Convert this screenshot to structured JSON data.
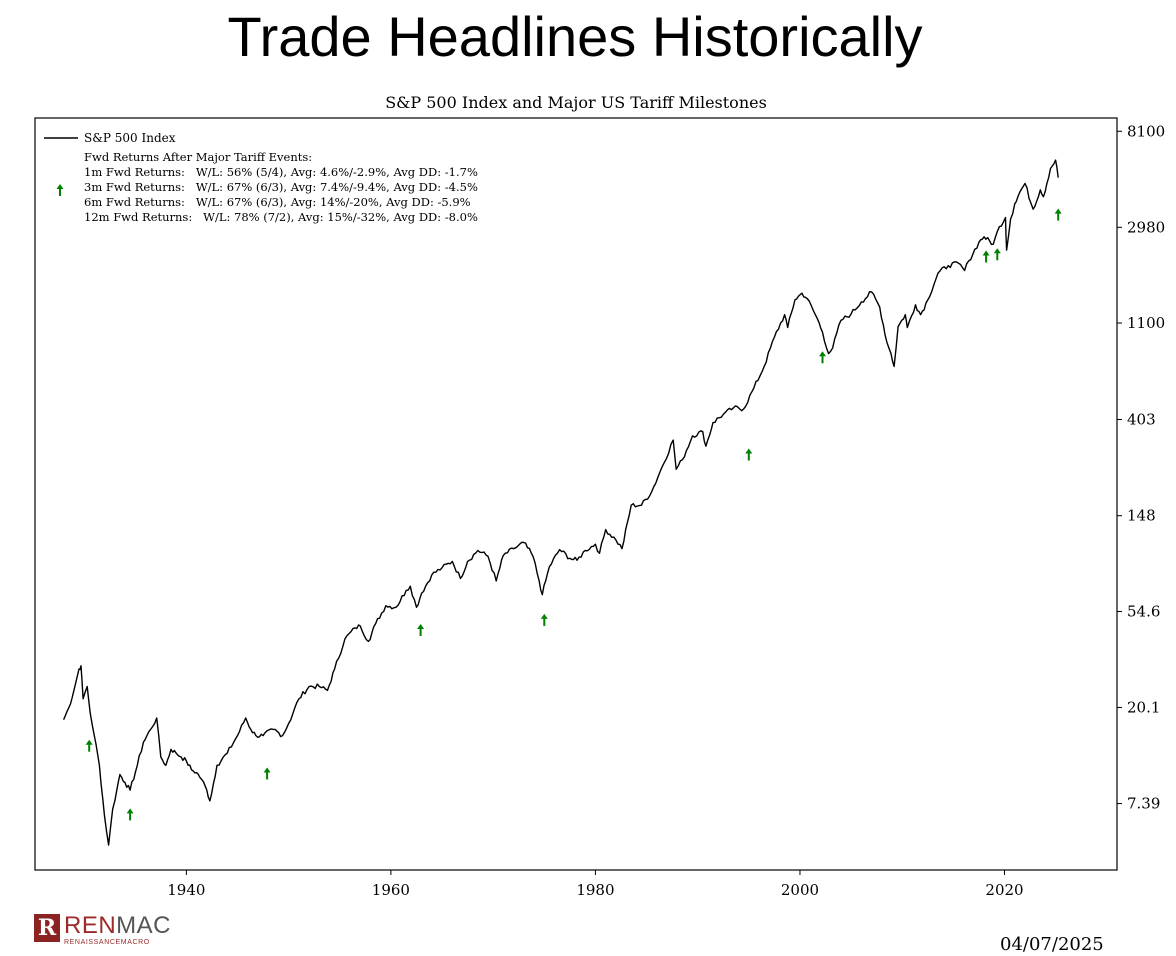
{
  "slide_title": "Trade Headlines Historically",
  "logo": {
    "name_part1": "REN",
    "name_part2": "MAC",
    "subtitle": "RENAISSANCEMACRO"
  },
  "date": "04/07/2025",
  "colors": {
    "line": "#000000",
    "arrow": "#008000",
    "logo": "#9c2a2a"
  },
  "chart_data": {
    "type": "line",
    "title": "S&P 500 Index and Major US Tariff Milestones",
    "y_scale": "log",
    "y_axis_side": "right",
    "xlim": [
      1925.2,
      2031.0
    ],
    "ylim": [
      3.7,
      9300
    ],
    "x_ticks": [
      1940,
      1960,
      1980,
      2000,
      2020
    ],
    "y_ticks": [
      {
        "value": 8100,
        "label": "8100"
      },
      {
        "value": 2980,
        "label": "2980"
      },
      {
        "value": 1100,
        "label": "1100"
      },
      {
        "value": 403,
        "label": "403"
      },
      {
        "value": 148,
        "label": "148"
      },
      {
        "value": 54.6,
        "label": "54.6"
      },
      {
        "value": 20.1,
        "label": "20.1"
      },
      {
        "value": 7.39,
        "label": "7.39"
      }
    ],
    "legend": {
      "placement": "top-left",
      "series_label": "S&P 500 Index",
      "stats_header": "Fwd Returns After Major Tariff Events:",
      "stats": [
        "1m Fwd Returns:   W/L: 56% (5/4), Avg: 4.6%/-2.9%, Avg DD: -1.7%",
        "3m Fwd Returns:   W/L: 67% (6/3), Avg: 7.4%/-9.4%, Avg DD: -4.5%",
        "6m Fwd Returns:   W/L: 67% (6/3), Avg: 14%/-20%, Avg DD: -5.9%",
        "12m Fwd Returns:   W/L: 78% (7/2), Avg: 15%/-32%, Avg DD: -8.0%"
      ]
    },
    "series": [
      {
        "name": "S&P 500 Index",
        "x": [
          1928.0,
          1928.5,
          1929.0,
          1929.5,
          1929.7,
          1929.9,
          1930.3,
          1930.6,
          1931.0,
          1931.5,
          1932.0,
          1932.4,
          1932.8,
          1933.2,
          1933.5,
          1934.0,
          1934.5,
          1935.2,
          1935.8,
          1936.5,
          1937.1,
          1937.5,
          1938.0,
          1938.5,
          1939.0,
          1939.5,
          1940.0,
          1940.5,
          1941.0,
          1941.5,
          1942.0,
          1942.3,
          1943.0,
          1944.0,
          1945.0,
          1945.8,
          1946.3,
          1946.8,
          1947.5,
          1948.5,
          1949.4,
          1950.0,
          1951.0,
          1952.0,
          1953.0,
          1953.8,
          1954.5,
          1955.5,
          1956.5,
          1957.0,
          1957.8,
          1958.5,
          1959.5,
          1960.5,
          1961.5,
          1961.9,
          1962.5,
          1963.0,
          1964.0,
          1965.0,
          1966.0,
          1966.8,
          1967.5,
          1968.5,
          1969.5,
          1970.3,
          1971.0,
          1972.0,
          1973.0,
          1973.9,
          1974.5,
          1974.8,
          1975.5,
          1976.5,
          1977.5,
          1978.2,
          1979.0,
          1980.0,
          1980.4,
          1981.0,
          1982.0,
          1982.6,
          1983.5,
          1984.5,
          1985.5,
          1986.5,
          1987.6,
          1987.9,
          1988.5,
          1989.5,
          1990.5,
          1990.8,
          1991.5,
          1992.5,
          1993.5,
          1994.5,
          1995.5,
          1996.5,
          1997.5,
          1998.5,
          1998.8,
          1999.5,
          2000.2,
          2000.7,
          2001.7,
          2002.2,
          2002.8,
          2003.2,
          2004.0,
          2005.0,
          2006.0,
          2007.0,
          2007.8,
          2008.5,
          2008.9,
          2009.2,
          2009.6,
          2010.3,
          2010.5,
          2011.3,
          2011.8,
          2012.5,
          2013.5,
          2014.5,
          2015.5,
          2016.1,
          2016.5,
          2017.5,
          2018.0,
          2018.9,
          2019.5,
          2020.1,
          2020.2,
          2020.6,
          2021.0,
          2021.5,
          2022.0,
          2022.8,
          2023.5,
          2023.8,
          2024.5,
          2025.0,
          2025.25
        ],
        "y": [
          17.7,
          20,
          24,
          30,
          31,
          22,
          25,
          19,
          15,
          11,
          6.5,
          4.8,
          7,
          8.5,
          10,
          9.2,
          8.5,
          11,
          14,
          16,
          18,
          12,
          11,
          13,
          12.5,
          12,
          11.5,
          10.5,
          10.2,
          9.5,
          8.5,
          7.6,
          11,
          12.5,
          15,
          18,
          16,
          15,
          15,
          16,
          15,
          17,
          22,
          25,
          25,
          24,
          30,
          41,
          46,
          47,
          40,
          48,
          58,
          57,
          68,
          71,
          57,
          66,
          80,
          86,
          92,
          77,
          92,
          103,
          97,
          75,
          98,
          105,
          112,
          97,
          75,
          65,
          87,
          104,
          95,
          93,
          103,
          110,
          100,
          128,
          115,
          105,
          165,
          165,
          190,
          245,
          325,
          240,
          265,
          340,
          355,
          305,
          390,
          425,
          455,
          450,
          560,
          700,
          950,
          1200,
          1050,
          1400,
          1500,
          1420,
          1150,
          1000,
          800,
          850,
          1130,
          1210,
          1370,
          1520,
          1300,
          900,
          800,
          700,
          1060,
          1200,
          1050,
          1330,
          1200,
          1400,
          1850,
          2000,
          2050,
          1900,
          2100,
          2550,
          2700,
          2500,
          3000,
          3300,
          2350,
          3250,
          3800,
          4300,
          4700,
          3600,
          4400,
          4100,
          5500,
          6000,
          5000
        ]
      }
    ],
    "tariff_events": [
      {
        "year": 1930.5,
        "value": 13.5
      },
      {
        "year": 1934.5,
        "value": 6.6
      },
      {
        "year": 1947.9,
        "value": 10.1
      },
      {
        "year": 1962.9,
        "value": 45
      },
      {
        "year": 1975.0,
        "value": 50
      },
      {
        "year": 1995.0,
        "value": 280
      },
      {
        "year": 2002.2,
        "value": 770
      },
      {
        "year": 2018.2,
        "value": 2200
      },
      {
        "year": 2019.3,
        "value": 2250
      },
      {
        "year": 2025.25,
        "value": 3400
      }
    ]
  }
}
